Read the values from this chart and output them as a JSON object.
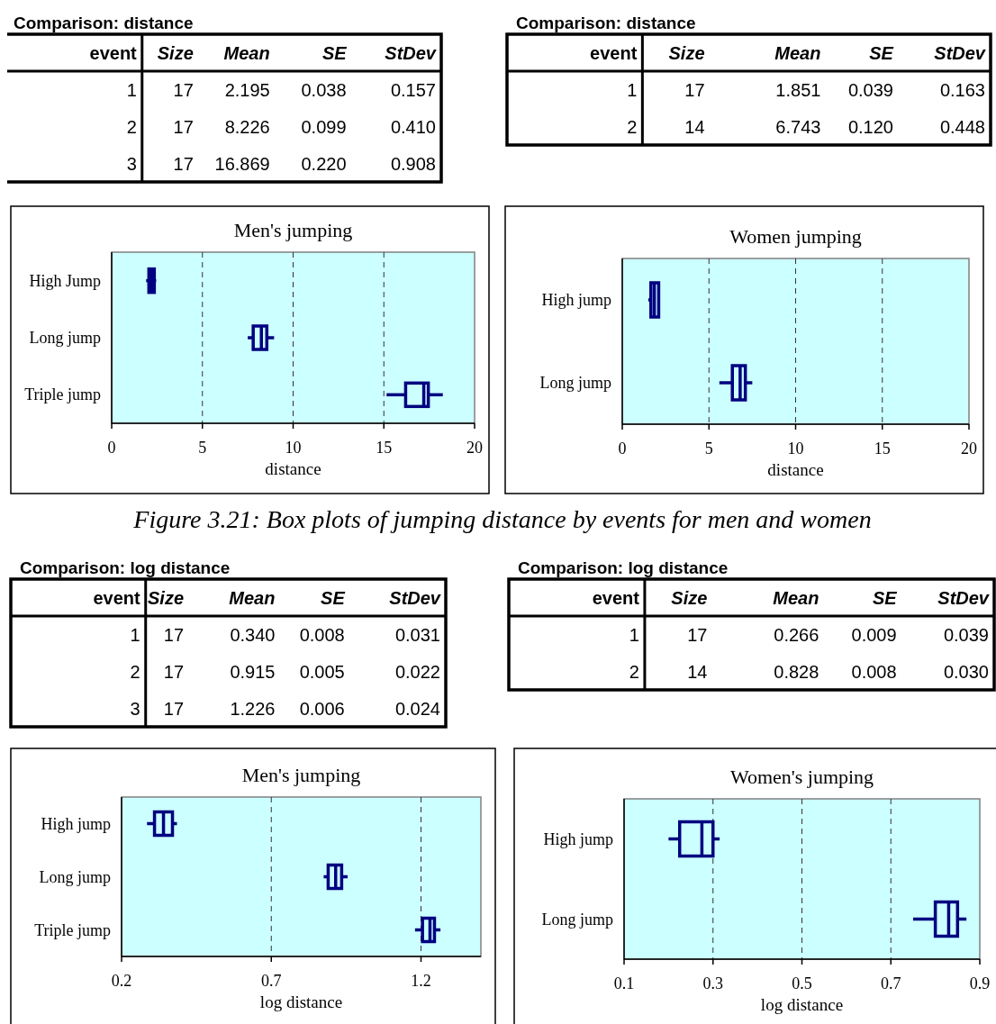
{
  "chart_data": [
    {
      "type": "other",
      "title": "Comparison: distance",
      "categories": [
        "event",
        "Size",
        "Mean",
        "SE",
        "StDev"
      ],
      "cell_labels": [
        [
          "1",
          "17",
          "2.195",
          "0.038",
          "0.157"
        ],
        [
          "2",
          "17",
          "8.226",
          "0.099",
          "0.410"
        ],
        [
          "3",
          "17",
          "16.869",
          "0.220",
          "0.908"
        ]
      ]
    },
    {
      "type": "other",
      "title": "Comparison: distance",
      "categories": [
        "event",
        "Size",
        "Mean",
        "SE",
        "StDev"
      ],
      "cell_labels": [
        [
          "1",
          "17",
          "1.851",
          "0.039",
          "0.163"
        ],
        [
          "2",
          "14",
          "6.743",
          "0.120",
          "0.448"
        ]
      ]
    },
    {
      "type": "box",
      "orientation": "horizontal",
      "title": "Men's jumping",
      "xlabel": "distance",
      "categories": [
        "High Jump",
        "Long jump",
        "Triple jump"
      ],
      "color": "#000080",
      "xlim": [
        0,
        20
      ],
      "xticks": [
        0,
        5,
        10,
        15,
        20
      ],
      "grid": "x",
      "boxes": [
        {
          "low": 1.9,
          "q1": 2.05,
          "median": 2.2,
          "q3": 2.35,
          "high": 2.45
        },
        {
          "low": 7.5,
          "q1": 7.8,
          "median": 8.25,
          "q3": 8.55,
          "high": 8.95
        },
        {
          "low": 15.15,
          "q1": 16.2,
          "median": 17.2,
          "q3": 17.45,
          "high": 18.25
        }
      ]
    },
    {
      "type": "box",
      "orientation": "horizontal",
      "title": "Women jumping",
      "xlabel": "distance",
      "categories": [
        "High jump",
        "Long jump"
      ],
      "color": "#000080",
      "xlim": [
        0,
        20
      ],
      "xticks": [
        0,
        5,
        10,
        15,
        20
      ],
      "grid": "x",
      "boxes": [
        {
          "low": 1.5,
          "q1": 1.65,
          "median": 1.85,
          "q3": 2.1,
          "high": 2.15
        },
        {
          "low": 5.6,
          "q1": 6.35,
          "median": 6.8,
          "q3": 7.1,
          "high": 7.5
        }
      ]
    },
    {
      "type": "other",
      "annotations": [
        "Figure 3.21: Box plots of jumping distance by events for men and women"
      ]
    },
    {
      "type": "other",
      "title": "Comparison: log distance",
      "categories": [
        "event",
        "Size",
        "Mean",
        "SE",
        "StDev"
      ],
      "cell_labels": [
        [
          "1",
          "17",
          "0.340",
          "0.008",
          "0.031"
        ],
        [
          "2",
          "17",
          "0.915",
          "0.005",
          "0.022"
        ],
        [
          "3",
          "17",
          "1.226",
          "0.006",
          "0.024"
        ]
      ]
    },
    {
      "type": "other",
      "title": "Comparison: log distance",
      "categories": [
        "event",
        "Size",
        "Mean",
        "SE",
        "StDev"
      ],
      "cell_labels": [
        [
          "1",
          "17",
          "0.266",
          "0.009",
          "0.039"
        ],
        [
          "2",
          "14",
          "0.828",
          "0.008",
          "0.030"
        ]
      ]
    },
    {
      "type": "box",
      "orientation": "horizontal",
      "title": "Men's jumping",
      "xlabel": "log distance",
      "categories": [
        "High jump",
        "Long jump",
        "Triple jump"
      ],
      "color": "#000080",
      "xlim": [
        0.2,
        1.4
      ],
      "xticks": [
        0.2,
        0.7,
        1.2
      ],
      "grid": "x",
      "boxes": [
        {
          "low": 0.285,
          "q1": 0.31,
          "median": 0.34,
          "q3": 0.37,
          "high": 0.385
        },
        {
          "low": 0.875,
          "q1": 0.89,
          "median": 0.915,
          "q3": 0.935,
          "high": 0.955
        },
        {
          "low": 1.18,
          "q1": 1.205,
          "median": 1.23,
          "q3": 1.245,
          "high": 1.265
        }
      ]
    },
    {
      "type": "box",
      "orientation": "horizontal",
      "title": "Women's jumping",
      "xlabel": "log distance",
      "categories": [
        "High jump",
        "Long jump"
      ],
      "color": "#000080",
      "xlim": [
        0.1,
        0.9
      ],
      "xticks": [
        0.1,
        0.3,
        0.5,
        0.7,
        0.9
      ],
      "grid": "x",
      "boxes": [
        {
          "low": 0.2,
          "q1": 0.225,
          "median": 0.275,
          "q3": 0.3,
          "high": 0.315
        },
        {
          "low": 0.75,
          "q1": 0.8,
          "median": 0.83,
          "q3": 0.85,
          "high": 0.87
        }
      ]
    }
  ]
}
